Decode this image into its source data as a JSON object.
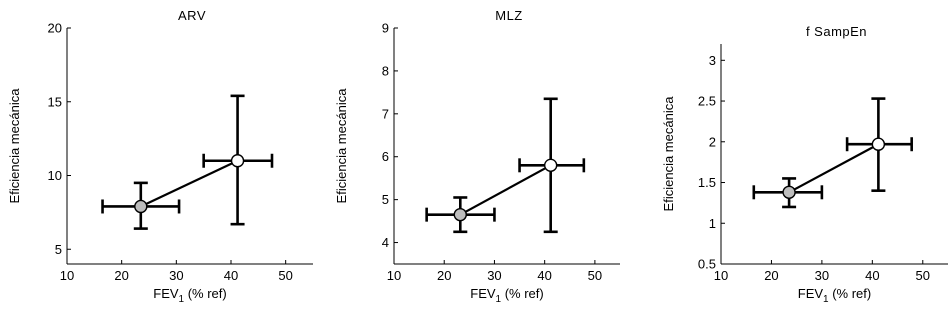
{
  "chart_data": [
    {
      "type": "scatter",
      "title": "ARV",
      "ylabel": "Eficiencia mecánica",
      "xlabel_parts": [
        "FEV",
        "1",
        " (% ref)"
      ],
      "xlim": [
        10,
        55
      ],
      "ylim": [
        4,
        20
      ],
      "xticks": [
        10,
        20,
        30,
        40,
        50
      ],
      "yticks": [
        5,
        10,
        15,
        20
      ],
      "ytick_labels": [
        "5",
        "10",
        "15",
        "20"
      ],
      "grid": false,
      "points": [
        {
          "x": 23.5,
          "y": 7.9,
          "xerr_low": 16.5,
          "xerr_high": 30.5,
          "yerr_low": 6.4,
          "yerr_high": 9.5,
          "marker_color": "#bdbdbd"
        },
        {
          "x": 41.2,
          "y": 11.0,
          "xerr_low": 35.0,
          "xerr_high": 47.5,
          "yerr_low": 6.7,
          "yerr_high": 15.4,
          "marker_color": "#ffffff"
        }
      ]
    },
    {
      "type": "scatter",
      "title": "MLZ",
      "ylabel": "Eficiencia mecánica",
      "xlabel_parts": [
        "FEV",
        "1",
        " (% ref)"
      ],
      "xlim": [
        10,
        55
      ],
      "ylim": [
        3.5,
        9
      ],
      "xticks": [
        10,
        20,
        30,
        40,
        50
      ],
      "yticks": [
        4,
        5,
        6,
        7,
        8,
        9
      ],
      "ytick_labels": [
        "4",
        "5",
        "6",
        "7",
        "8",
        "9"
      ],
      "grid": false,
      "points": [
        {
          "x": 23.2,
          "y": 4.65,
          "xerr_low": 16.5,
          "xerr_high": 30.0,
          "yerr_low": 4.25,
          "yerr_high": 5.05,
          "marker_color": "#bdbdbd"
        },
        {
          "x": 41.2,
          "y": 5.8,
          "xerr_low": 35.0,
          "xerr_high": 47.8,
          "yerr_low": 4.25,
          "yerr_high": 7.35,
          "marker_color": "#ffffff"
        }
      ]
    },
    {
      "type": "scatter",
      "title": "f SampEn",
      "ylabel": "Eficiencia mecánica",
      "xlabel_parts": [
        "FEV",
        "1",
        " (% ref)"
      ],
      "xlim": [
        10,
        55
      ],
      "ylim": [
        0.5,
        3.2
      ],
      "xticks": [
        10,
        20,
        30,
        40,
        50
      ],
      "yticks": [
        0.5,
        1,
        1.5,
        2,
        2.5,
        3
      ],
      "ytick_labels": [
        "0.5",
        "1",
        "1.5",
        "2",
        "2.5",
        "3"
      ],
      "grid": false,
      "points": [
        {
          "x": 23.5,
          "y": 1.38,
          "xerr_low": 16.5,
          "xerr_high": 30.0,
          "yerr_low": 1.2,
          "yerr_high": 1.55,
          "marker_color": "#bdbdbd"
        },
        {
          "x": 41.2,
          "y": 1.97,
          "xerr_low": 35.0,
          "xerr_high": 47.8,
          "yerr_low": 1.4,
          "yerr_high": 2.53,
          "marker_color": "#ffffff"
        }
      ]
    }
  ]
}
